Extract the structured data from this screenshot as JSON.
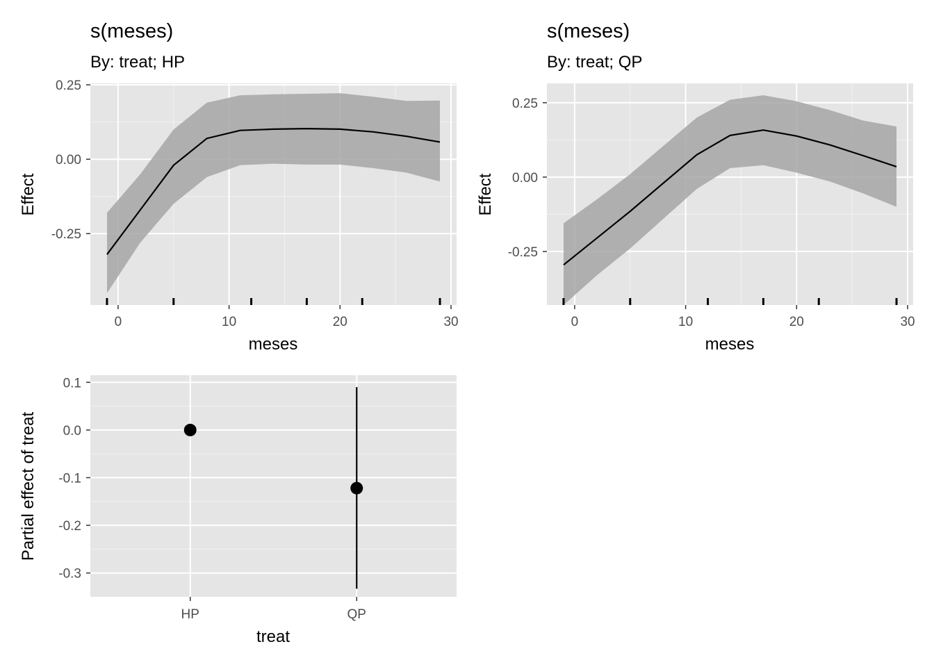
{
  "chart_data": [
    {
      "type": "line",
      "title": "s(meses)",
      "subtitle": "By: treat; HP",
      "xlabel": "meses",
      "ylabel": "Effect",
      "xlim": [
        -2.5,
        30.5
      ],
      "ylim": [
        -0.49,
        0.255
      ],
      "x_ticks": [
        0,
        10,
        20,
        30
      ],
      "x_tick_labels": [
        "0",
        "10",
        "20",
        "30"
      ],
      "y_ticks": [
        -0.25,
        0.0,
        0.25
      ],
      "y_tick_labels": [
        "-0.25",
        "0.00",
        "0.25"
      ],
      "grid": true,
      "series": [
        {
          "x": [
            -1,
            2,
            5,
            8,
            11,
            14,
            17,
            20,
            23,
            26,
            29
          ],
          "y": [
            -0.32,
            -0.17,
            -0.02,
            0.07,
            0.097,
            0.101,
            0.103,
            0.101,
            0.092,
            0.077,
            0.058
          ],
          "lower": [
            -0.45,
            -0.28,
            -0.15,
            -0.06,
            -0.02,
            -0.015,
            -0.018,
            -0.018,
            -0.03,
            -0.045,
            -0.075
          ],
          "upper": [
            -0.18,
            -0.05,
            0.1,
            0.19,
            0.215,
            0.218,
            0.22,
            0.222,
            0.21,
            0.196,
            0.197
          ]
        }
      ],
      "rug": [
        -1,
        5,
        12,
        17,
        22,
        29
      ]
    },
    {
      "type": "line",
      "title": "s(meses)",
      "subtitle": "By: treat; QP",
      "xlabel": "meses",
      "ylabel": "Effect",
      "xlim": [
        -2.5,
        30.5
      ],
      "ylim": [
        -0.43,
        0.315
      ],
      "x_ticks": [
        0,
        10,
        20,
        30
      ],
      "x_tick_labels": [
        "0",
        "10",
        "20",
        "30"
      ],
      "y_ticks": [
        -0.25,
        0.0,
        0.25
      ],
      "y_tick_labels": [
        "-0.25",
        "0.00",
        "0.25"
      ],
      "grid": true,
      "series": [
        {
          "x": [
            -1,
            2,
            5,
            8,
            11,
            14,
            17,
            20,
            23,
            26,
            29
          ],
          "y": [
            -0.295,
            -0.205,
            -0.115,
            -0.02,
            0.075,
            0.14,
            0.158,
            0.138,
            0.108,
            0.072,
            0.035
          ],
          "lower": [
            -0.43,
            -0.33,
            -0.24,
            -0.14,
            -0.04,
            0.03,
            0.04,
            0.015,
            -0.015,
            -0.055,
            -0.1
          ],
          "upper": [
            -0.155,
            -0.075,
            0.01,
            0.105,
            0.2,
            0.26,
            0.275,
            0.255,
            0.225,
            0.19,
            0.17
          ]
        }
      ],
      "rug": [
        -1,
        5,
        12,
        17,
        22,
        29
      ]
    },
    {
      "type": "scatter",
      "xlabel": "treat",
      "ylabel": "Partial effect of treat",
      "categories": [
        "HP",
        "QP"
      ],
      "ylim": [
        -0.35,
        0.115
      ],
      "y_ticks": [
        0.1,
        0.0,
        -0.1,
        -0.2,
        -0.3
      ],
      "y_tick_labels": [
        "0.1",
        "0.0",
        "-0.1",
        "-0.2",
        "-0.3"
      ],
      "grid": true,
      "points": [
        {
          "category": "HP",
          "value": 0.0,
          "lower": 0.0,
          "upper": 0.0
        },
        {
          "category": "QP",
          "value": -0.122,
          "lower": -0.333,
          "upper": 0.09
        }
      ]
    }
  ]
}
